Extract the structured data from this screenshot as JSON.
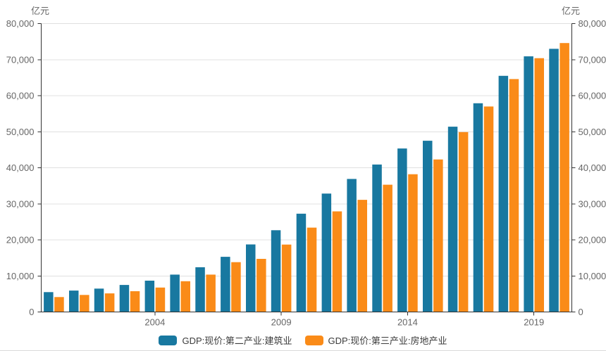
{
  "chart_data": {
    "type": "bar",
    "title": "",
    "unit_label_left": "亿元",
    "unit_label_right": "亿元",
    "categories": [
      2000,
      2001,
      2002,
      2003,
      2004,
      2005,
      2006,
      2007,
      2008,
      2009,
      2010,
      2011,
      2012,
      2013,
      2014,
      2015,
      2016,
      2017,
      2018,
      2019,
      2020
    ],
    "series": [
      {
        "name": "GDP:现价:第二产业:建筑业",
        "color": "#1878a0",
        "values": [
          5500,
          5930,
          6470,
          7490,
          8690,
          10370,
          12410,
          15300,
          18740,
          22680,
          27260,
          32840,
          36900,
          40900,
          45340,
          47500,
          51400,
          57900,
          65500,
          70900,
          73000
        ]
      },
      {
        "name": "GDP:现价:第三产业:房地产业",
        "color": "#fa8b18",
        "values": [
          4140,
          4715,
          5155,
          5760,
          6780,
          8520,
          10370,
          13810,
          14740,
          18700,
          23400,
          27900,
          31100,
          35300,
          38200,
          42300,
          49900,
          57000,
          64600,
          70400,
          74600
        ]
      }
    ],
    "ylim": [
      0,
      80000
    ],
    "ytick_interval": 10000,
    "ytick_labels": [
      "0",
      "10,000",
      "20,000",
      "30,000",
      "40,000",
      "50,000",
      "60,000",
      "70,000",
      "80,000"
    ],
    "xtick_years": [
      2004,
      2009,
      2014,
      2019
    ],
    "xtick_labels": [
      "2004",
      "2009",
      "2014",
      "2019"
    ],
    "grid": true,
    "dual_y_axis": true,
    "legend_position": "bottom",
    "colors": {
      "background": "#ffffff",
      "axis_line": "#333333",
      "gridline": "#e0e0e0",
      "tick_label": "#666666",
      "legend_text": "#3c3c3c",
      "panel_border": "#d9d9d9"
    }
  }
}
